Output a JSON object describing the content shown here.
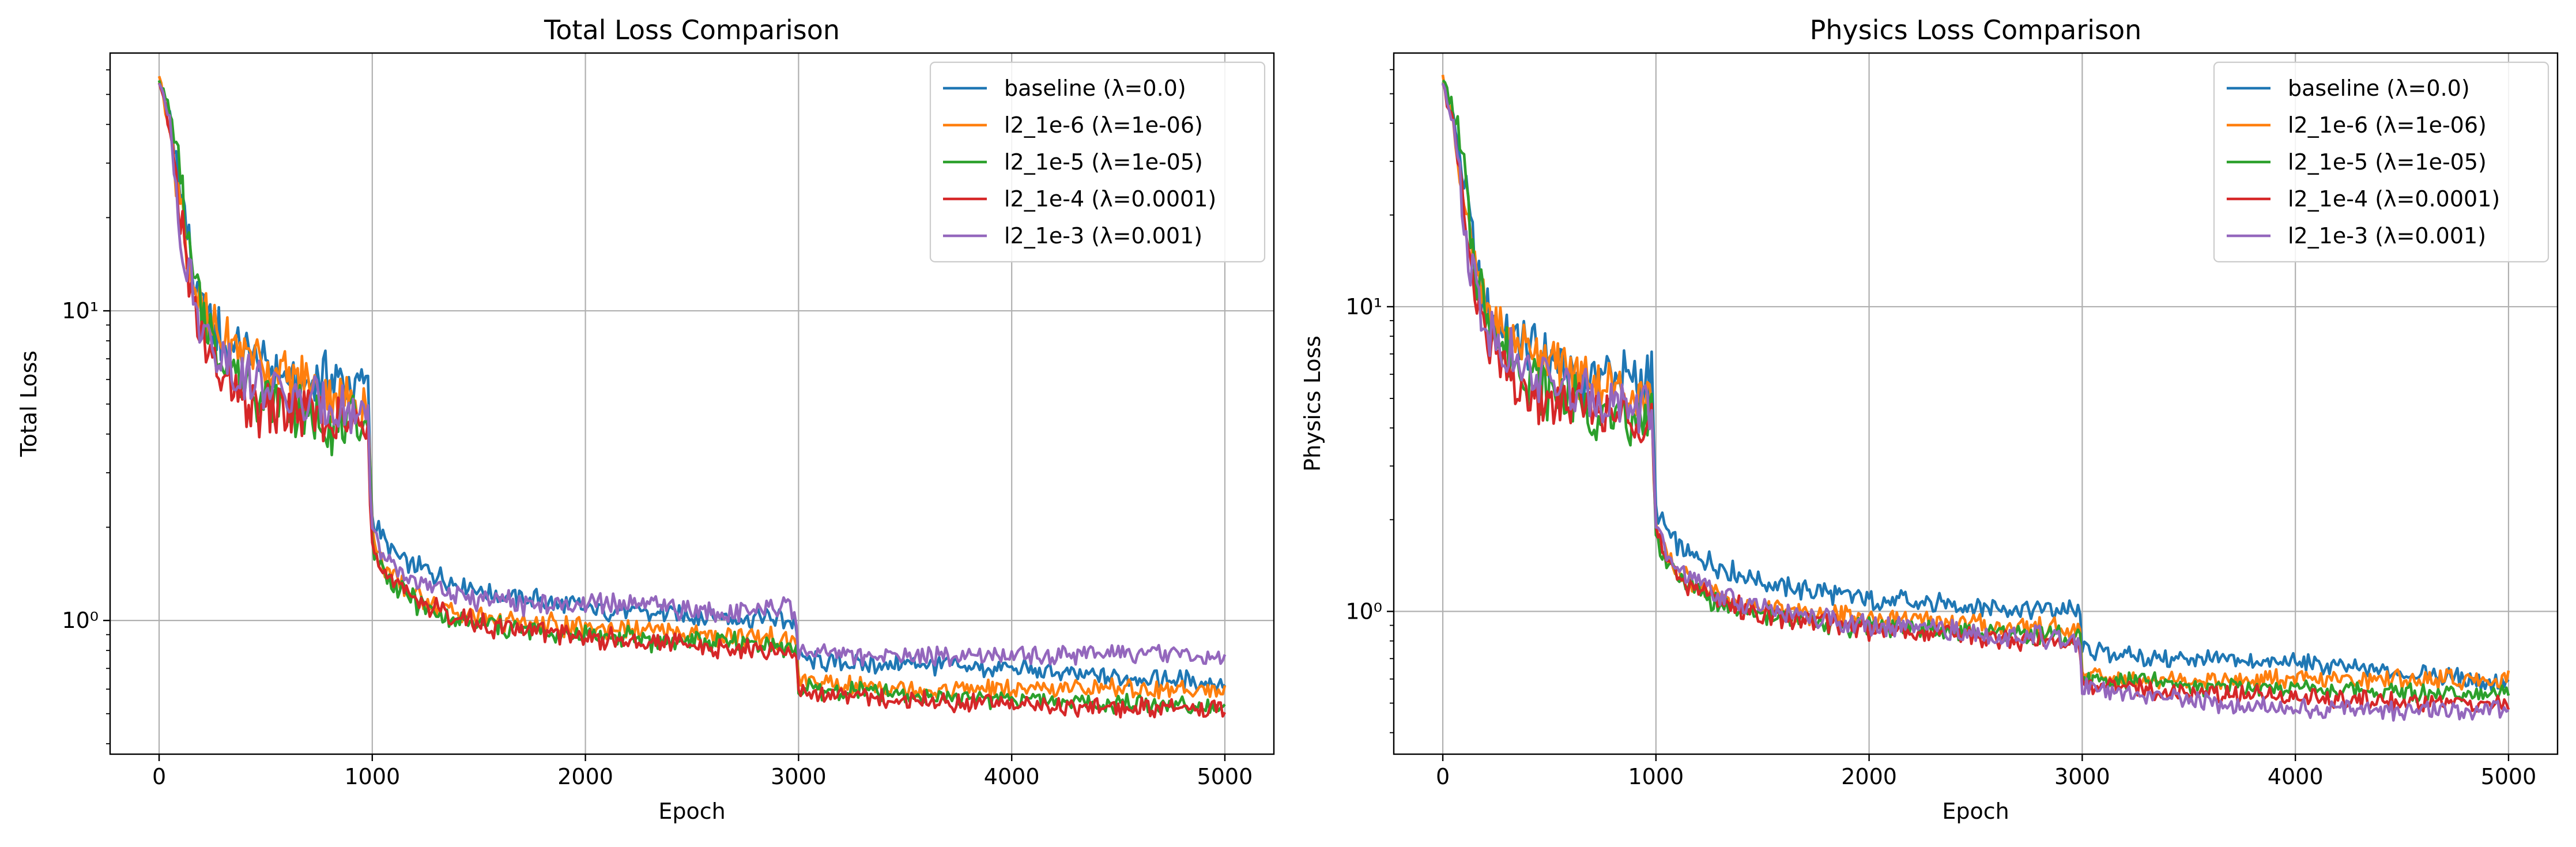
{
  "chart_data": [
    {
      "type": "line",
      "title": "Total Loss Comparison",
      "xlabel": "Epoch",
      "ylabel": "Total Loss",
      "xlim": [
        -230,
        5230
      ],
      "ylim": [
        0.37,
        68
      ],
      "yscale": "log",
      "grid": true,
      "legend_position": "top-right",
      "x_ticks": [
        0,
        1000,
        2000,
        3000,
        4000,
        5000
      ],
      "x_tick_labels": [
        "0",
        "1000",
        "2000",
        "3000",
        "4000",
        "5000"
      ],
      "y_ticks": [
        1,
        10
      ],
      "y_tick_labels": [
        "10⁰",
        "10¹"
      ],
      "series": [
        {
          "name": "baseline (λ=0.0)",
          "color": "#1f77b4",
          "x": [
            0,
            50,
            100,
            150,
            200,
            300,
            400,
            500,
            600,
            700,
            800,
            900,
            980,
            1000,
            1050,
            1100,
            1200,
            1300,
            1400,
            1500,
            1600,
            1700,
            1800,
            1900,
            2000,
            2200,
            2400,
            2600,
            2800,
            2950,
            2990,
            3000,
            3050,
            3200,
            3400,
            3600,
            3800,
            4000,
            4200,
            4400,
            4600,
            4800,
            5000
          ],
          "y": [
            55,
            42,
            25,
            14,
            10,
            8,
            7.5,
            6.5,
            6,
            5.8,
            6.2,
            5.5,
            5.8,
            2.2,
            1.8,
            1.65,
            1.5,
            1.4,
            1.32,
            1.25,
            1.2,
            1.18,
            1.15,
            1.12,
            1.1,
            1.07,
            1.05,
            1.03,
            1.02,
            1.0,
            0.98,
            0.76,
            0.74,
            0.73,
            0.72,
            0.72,
            0.7,
            0.7,
            0.68,
            0.66,
            0.65,
            0.64,
            0.63
          ]
        },
        {
          "name": "l2_1e-6 (λ=1e-06)",
          "color": "#ff7f0e",
          "x": [
            0,
            50,
            100,
            150,
            200,
            300,
            400,
            500,
            600,
            700,
            800,
            900,
            980,
            1000,
            1050,
            1100,
            1200,
            1300,
            1400,
            1500,
            1600,
            1700,
            1800,
            1900,
            2000,
            2200,
            2400,
            2600,
            2800,
            2950,
            2990,
            3000,
            3050,
            3200,
            3400,
            3600,
            3800,
            4000,
            4200,
            4400,
            4600,
            4800,
            5000
          ],
          "y": [
            58,
            40,
            22,
            13,
            9.5,
            8,
            7.5,
            6.8,
            6.2,
            5.8,
            5.5,
            5.2,
            5.0,
            1.9,
            1.5,
            1.35,
            1.22,
            1.12,
            1.05,
            1.02,
            1.0,
            0.98,
            0.97,
            0.96,
            0.95,
            0.93,
            0.92,
            0.9,
            0.88,
            0.87,
            0.86,
            0.64,
            0.63,
            0.62,
            0.61,
            0.6,
            0.6,
            0.6,
            0.6,
            0.61,
            0.6,
            0.6,
            0.6
          ]
        },
        {
          "name": "l2_1e-5 (λ=1e-05)",
          "color": "#2ca02c",
          "x": [
            0,
            50,
            100,
            150,
            200,
            300,
            400,
            500,
            600,
            700,
            800,
            900,
            980,
            1000,
            1050,
            1100,
            1200,
            1300,
            1400,
            1500,
            1600,
            1700,
            1800,
            1900,
            2000,
            2200,
            2400,
            2600,
            2800,
            2950,
            2990,
            3000,
            3050,
            3200,
            3400,
            3600,
            3800,
            4000,
            4200,
            4400,
            4600,
            4800,
            5000
          ],
          "y": [
            56,
            45,
            28,
            14,
            10,
            7,
            6,
            5.2,
            4.8,
            4.5,
            4.3,
            4.2,
            4.5,
            1.8,
            1.42,
            1.3,
            1.15,
            1.05,
            1.0,
            0.97,
            0.95,
            0.93,
            0.92,
            0.9,
            0.9,
            0.88,
            0.86,
            0.85,
            0.84,
            0.82,
            0.82,
            0.6,
            0.6,
            0.59,
            0.58,
            0.57,
            0.56,
            0.56,
            0.55,
            0.54,
            0.54,
            0.53,
            0.53
          ]
        },
        {
          "name": "l2_1e-4 (λ=0.0001)",
          "color": "#d62728",
          "x": [
            0,
            50,
            100,
            150,
            200,
            300,
            400,
            500,
            600,
            700,
            800,
            900,
            980,
            1000,
            1050,
            1100,
            1200,
            1300,
            1400,
            1500,
            1600,
            1700,
            1800,
            1900,
            2000,
            2200,
            2400,
            2600,
            2800,
            2950,
            2990,
            3000,
            3050,
            3200,
            3400,
            3600,
            3800,
            4000,
            4200,
            4400,
            4600,
            4800,
            5000
          ],
          "y": [
            54,
            40,
            20,
            11,
            8,
            6,
            5,
            4.8,
            4.6,
            4.5,
            4.4,
            4.3,
            4.4,
            1.85,
            1.45,
            1.32,
            1.18,
            1.08,
            1.02,
            0.98,
            0.95,
            0.93,
            0.92,
            0.9,
            0.88,
            0.86,
            0.84,
            0.82,
            0.8,
            0.79,
            0.78,
            0.59,
            0.58,
            0.57,
            0.56,
            0.55,
            0.54,
            0.54,
            0.53,
            0.53,
            0.52,
            0.52,
            0.52
          ]
        },
        {
          "name": "l2_1e-3 (λ=0.001)",
          "color": "#9467bd",
          "x": [
            0,
            50,
            100,
            150,
            200,
            300,
            400,
            500,
            600,
            700,
            800,
            900,
            980,
            1000,
            1050,
            1100,
            1200,
            1300,
            1400,
            1500,
            1600,
            1700,
            1800,
            1900,
            2000,
            2200,
            2400,
            2600,
            2800,
            2950,
            2990,
            3000,
            3050,
            3200,
            3400,
            3600,
            3800,
            4000,
            4200,
            4400,
            4600,
            4800,
            5000
          ],
          "y": [
            55,
            42,
            18,
            12,
            9,
            7,
            6,
            5.5,
            5.2,
            5.0,
            4.9,
            4.8,
            4.8,
            2.0,
            1.6,
            1.45,
            1.32,
            1.25,
            1.2,
            1.17,
            1.15,
            1.13,
            1.12,
            1.12,
            1.15,
            1.12,
            1.1,
            1.08,
            1.08,
            1.1,
            1.05,
            0.8,
            0.78,
            0.77,
            0.76,
            0.76,
            0.78,
            0.78,
            0.77,
            0.78,
            0.78,
            0.78,
            0.74
          ]
        }
      ]
    },
    {
      "type": "line",
      "title": "Physics Loss Comparison",
      "xlabel": "Epoch",
      "ylabel": "Physics Loss",
      "xlim": [
        -230,
        5230
      ],
      "ylim": [
        0.34,
        68
      ],
      "yscale": "log",
      "grid": true,
      "legend_position": "top-right",
      "x_ticks": [
        0,
        1000,
        2000,
        3000,
        4000,
        5000
      ],
      "x_tick_labels": [
        "0",
        "1000",
        "2000",
        "3000",
        "4000",
        "5000"
      ],
      "y_ticks": [
        1,
        10
      ],
      "y_tick_labels": [
        "10⁰",
        "10¹"
      ],
      "series": [
        {
          "name": "baseline (λ=0.0)",
          "color": "#1f77b4",
          "x": [
            0,
            50,
            100,
            150,
            200,
            300,
            400,
            500,
            600,
            700,
            800,
            900,
            980,
            1000,
            1050,
            1100,
            1200,
            1300,
            1400,
            1500,
            1600,
            1700,
            1800,
            1900,
            2000,
            2200,
            2400,
            2600,
            2800,
            2950,
            2990,
            3000,
            3050,
            3200,
            3400,
            3600,
            3800,
            4000,
            4200,
            4400,
            4600,
            4800,
            5000
          ],
          "y": [
            55,
            42,
            25,
            14,
            10,
            8,
            7.5,
            6.5,
            6,
            5.8,
            6.2,
            5.5,
            5.8,
            2.2,
            1.8,
            1.65,
            1.5,
            1.4,
            1.32,
            1.25,
            1.2,
            1.18,
            1.15,
            1.12,
            1.1,
            1.07,
            1.05,
            1.03,
            1.02,
            1.0,
            0.98,
            0.76,
            0.74,
            0.72,
            0.7,
            0.69,
            0.68,
            0.68,
            0.66,
            0.64,
            0.62,
            0.6,
            0.58
          ]
        },
        {
          "name": "l2_1e-6 (λ=1e-06)",
          "color": "#ff7f0e",
          "x": [
            0,
            50,
            100,
            150,
            200,
            300,
            400,
            500,
            600,
            700,
            800,
            900,
            980,
            1000,
            1050,
            1100,
            1200,
            1300,
            1400,
            1500,
            1600,
            1700,
            1800,
            1900,
            2000,
            2200,
            2400,
            2600,
            2800,
            2950,
            2990,
            3000,
            3050,
            3200,
            3400,
            3600,
            3800,
            4000,
            4200,
            4400,
            4600,
            4800,
            5000
          ],
          "y": [
            58,
            40,
            22,
            13,
            9.5,
            8,
            7.5,
            6.8,
            6.2,
            5.8,
            5.5,
            5.2,
            5.0,
            1.9,
            1.5,
            1.35,
            1.22,
            1.12,
            1.05,
            1.02,
            1.0,
            0.98,
            0.97,
            0.96,
            0.95,
            0.93,
            0.92,
            0.9,
            0.88,
            0.87,
            0.86,
            0.62,
            0.61,
            0.6,
            0.6,
            0.6,
            0.59,
            0.6,
            0.6,
            0.6,
            0.6,
            0.6,
            0.6
          ]
        },
        {
          "name": "l2_1e-5 (λ=1e-05)",
          "color": "#2ca02c",
          "x": [
            0,
            50,
            100,
            150,
            200,
            300,
            400,
            500,
            600,
            700,
            800,
            900,
            980,
            1000,
            1050,
            1100,
            1200,
            1300,
            1400,
            1500,
            1600,
            1700,
            1800,
            1900,
            2000,
            2200,
            2400,
            2600,
            2800,
            2950,
            2990,
            3000,
            3050,
            3200,
            3400,
            3600,
            3800,
            4000,
            4200,
            4400,
            4600,
            4800,
            5000
          ],
          "y": [
            56,
            45,
            28,
            14,
            10,
            7,
            6,
            5.2,
            4.8,
            4.5,
            4.3,
            4.2,
            4.5,
            1.8,
            1.42,
            1.3,
            1.15,
            1.05,
            1.0,
            0.97,
            0.95,
            0.93,
            0.92,
            0.9,
            0.9,
            0.88,
            0.86,
            0.85,
            0.84,
            0.82,
            0.82,
            0.6,
            0.6,
            0.59,
            0.58,
            0.57,
            0.56,
            0.56,
            0.55,
            0.55,
            0.54,
            0.54,
            0.54
          ]
        },
        {
          "name": "l2_1e-4 (λ=0.0001)",
          "color": "#d62728",
          "x": [
            0,
            50,
            100,
            150,
            200,
            300,
            400,
            500,
            600,
            700,
            800,
            900,
            980,
            1000,
            1050,
            1100,
            1200,
            1300,
            1400,
            1500,
            1600,
            1700,
            1800,
            1900,
            2000,
            2200,
            2400,
            2600,
            2800,
            2950,
            2990,
            3000,
            3050,
            3200,
            3400,
            3600,
            3800,
            4000,
            4200,
            4400,
            4600,
            4800,
            5000
          ],
          "y": [
            54,
            40,
            20,
            11,
            8,
            6,
            5,
            4.8,
            4.6,
            4.5,
            4.4,
            4.3,
            4.4,
            1.85,
            1.45,
            1.32,
            1.18,
            1.08,
            1.02,
            0.98,
            0.95,
            0.93,
            0.92,
            0.9,
            0.88,
            0.86,
            0.84,
            0.82,
            0.8,
            0.79,
            0.78,
            0.58,
            0.57,
            0.56,
            0.55,
            0.54,
            0.53,
            0.52,
            0.52,
            0.51,
            0.5,
            0.5,
            0.5
          ]
        },
        {
          "name": "l2_1e-3 (λ=0.001)",
          "color": "#9467bd",
          "x": [
            0,
            50,
            100,
            150,
            200,
            300,
            400,
            500,
            600,
            700,
            800,
            900,
            980,
            1000,
            1050,
            1100,
            1200,
            1300,
            1400,
            1500,
            1600,
            1700,
            1800,
            1900,
            2000,
            2200,
            2400,
            2600,
            2800,
            2950,
            2990,
            3000,
            3050,
            3200,
            3400,
            3600,
            3800,
            4000,
            4200,
            4400,
            4600,
            4800,
            5000
          ],
          "y": [
            55,
            42,
            18,
            12,
            9,
            7,
            6,
            5.5,
            5.2,
            5.0,
            4.9,
            4.8,
            4.8,
            1.9,
            1.5,
            1.38,
            1.22,
            1.12,
            1.06,
            1.02,
            0.98,
            0.96,
            0.94,
            0.92,
            0.9,
            0.88,
            0.86,
            0.84,
            0.82,
            0.8,
            0.78,
            0.56,
            0.55,
            0.53,
            0.52,
            0.5,
            0.49,
            0.48,
            0.48,
            0.47,
            0.47,
            0.47,
            0.48
          ]
        }
      ]
    }
  ]
}
